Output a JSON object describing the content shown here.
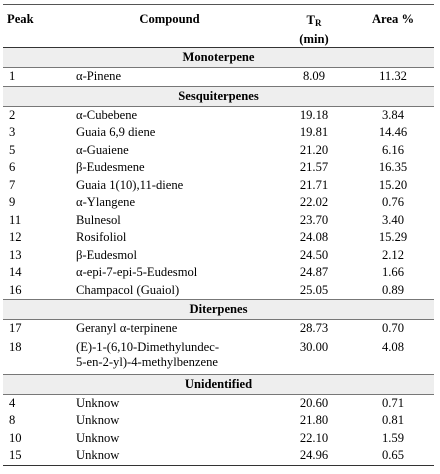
{
  "headers": {
    "peak": "Peak",
    "compound": "Compound",
    "tr_main": "T",
    "tr_sub": "R",
    "tr_unit": "(min)",
    "area": "Area %"
  },
  "sections": [
    {
      "title": "Monoterpene",
      "rows": [
        {
          "peak": "1",
          "compound": "α-Pinene",
          "tr": "8.09",
          "area": "11.32"
        }
      ]
    },
    {
      "title": "Sesquiterpenes",
      "rows": [
        {
          "peak": "2",
          "compound": "α-Cubebene",
          "tr": "19.18",
          "area": "3.84"
        },
        {
          "peak": "3",
          "compound": "Guaia 6,9 diene",
          "tr": "19.81",
          "area": "14.46"
        },
        {
          "peak": "5",
          "compound": "α-Guaiene",
          "tr": "21.20",
          "area": "6.16"
        },
        {
          "peak": "6",
          "compound": "β-Eudesmene",
          "tr": "21.57",
          "area": "16.35"
        },
        {
          "peak": "7",
          "compound": "Guaia 1(10),11-diene",
          "tr": "21.71",
          "area": "15.20"
        },
        {
          "peak": "9",
          "compound": "α-Ylangene",
          "tr": "22.02",
          "area": "0.76"
        },
        {
          "peak": "11",
          "compound": "Bulnesol",
          "tr": "23.70",
          "area": "3.40"
        },
        {
          "peak": "12",
          "compound": "Rosifoliol",
          "tr": "24.08",
          "area": "15.29"
        },
        {
          "peak": "13",
          "compound": "β-Eudesmol",
          "tr": "24.50",
          "area": "2.12"
        },
        {
          "peak": "14",
          "compound": "α-epi-7-epi-5-Eudesmol",
          "tr": "24.87",
          "area": "1.66"
        },
        {
          "peak": "16",
          "compound": "Champacol (Guaiol)",
          "tr": "25.05",
          "area": "0.89"
        }
      ]
    },
    {
      "title": "Diterpenes",
      "rows": [
        {
          "peak": "17",
          "compound": "Geranyl α-terpinene",
          "tr": "28.73",
          "area": "0.70"
        },
        {
          "peak": "18",
          "compound": "(E)-1-(6,10-Dimethylundec-",
          "compound2": "5-en-2-yl)-4-methylbenzene",
          "tr": "30.00",
          "area": "4.08"
        }
      ]
    },
    {
      "title": "Unidentified",
      "rows": [
        {
          "peak": "4",
          "compound": "Unknow",
          "tr": "20.60",
          "area": "0.71"
        },
        {
          "peak": "8",
          "compound": "Unknow",
          "tr": "21.80",
          "area": "0.81"
        },
        {
          "peak": "10",
          "compound": "Unknow",
          "tr": "22.10",
          "area": "1.59"
        },
        {
          "peak": "15",
          "compound": "Unknow",
          "tr": "24.96",
          "area": "0.65"
        }
      ]
    }
  ]
}
